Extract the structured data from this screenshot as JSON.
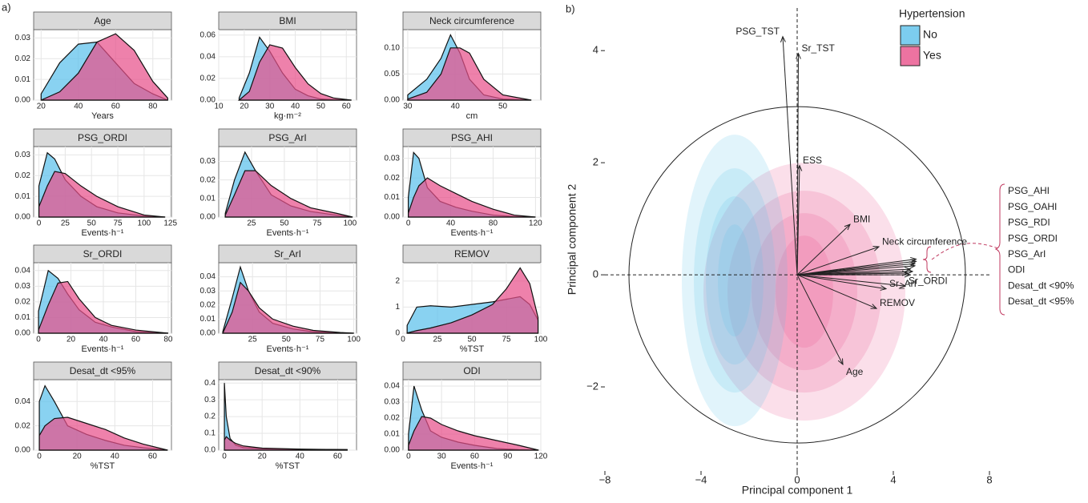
{
  "chart_data": [
    {
      "type": "density",
      "panel_label": "a)",
      "title": "Age",
      "xlabel": "Years",
      "xlim": [
        16,
        90
      ],
      "xticks": [
        20,
        40,
        60,
        80
      ],
      "ylim": [
        0,
        0.034
      ],
      "yticks": [
        {
          "value": 0,
          "label": "0.00"
        },
        0.01,
        0.02,
        0.03
      ],
      "x": [
        20,
        30,
        40,
        50,
        60,
        70,
        80,
        88
      ],
      "series": [
        {
          "color": "#5bc0eb",
          "values": [
            0.003,
            0.018,
            0.027,
            0.028,
            0.018,
            0.008,
            0.003,
            0
          ]
        },
        {
          "color": "#e8508a",
          "values": [
            0,
            0.004,
            0.013,
            0.028,
            0.032,
            0.024,
            0.009,
            0.001
          ]
        }
      ]
    },
    {
      "type": "density",
      "title": "BMI",
      "xlabel": "kg·m⁻²",
      "xlim": [
        10,
        64
      ],
      "xticks": [
        10,
        20,
        30,
        40,
        50,
        60
      ],
      "ylim": [
        0,
        0.065
      ],
      "yticks": [
        {
          "value": 0,
          "label": "0.00"
        },
        0.02,
        0.04,
        0.06
      ],
      "x": [
        18,
        22,
        26,
        30,
        35,
        40,
        45,
        50,
        55,
        62
      ],
      "series": [
        {
          "color": "#5bc0eb",
          "values": [
            0.002,
            0.025,
            0.058,
            0.045,
            0.025,
            0.01,
            0.004,
            0.001,
            0.0005,
            0
          ]
        },
        {
          "color": "#e8508a",
          "values": [
            0,
            0.008,
            0.035,
            0.051,
            0.048,
            0.03,
            0.015,
            0.006,
            0.002,
            0
          ]
        }
      ]
    },
    {
      "type": "density",
      "title": "Neck circumference",
      "xlabel": "cm",
      "xlim": [
        29,
        58
      ],
      "xticks": [
        30,
        40,
        50
      ],
      "ylim": [
        0,
        0.135
      ],
      "yticks": [
        {
          "value": 0,
          "label": "0.00"
        },
        0.05,
        {
          "value": 0.1,
          "label": "0.10"
        }
      ],
      "x": [
        30,
        34,
        37,
        39,
        41,
        43,
        46,
        50,
        56
      ],
      "series": [
        {
          "color": "#5bc0eb",
          "values": [
            0.01,
            0.04,
            0.08,
            0.125,
            0.09,
            0.04,
            0.01,
            0.002,
            0
          ]
        },
        {
          "color": "#e8508a",
          "values": [
            0.002,
            0.015,
            0.05,
            0.1,
            0.1,
            0.09,
            0.04,
            0.01,
            0
          ]
        }
      ]
    },
    {
      "type": "density",
      "title": "PSG_ORDI",
      "xlabel": "Events·h⁻¹",
      "xlim": [
        -5,
        126
      ],
      "xticks": [
        0,
        25,
        50,
        75,
        100,
        125
      ],
      "ylim": [
        0,
        0.034
      ],
      "yticks": [
        {
          "value": 0,
          "label": "0.00"
        },
        0.01,
        0.02,
        0.03
      ],
      "x": [
        0,
        8,
        15,
        25,
        40,
        55,
        75,
        100,
        120
      ],
      "series": [
        {
          "color": "#5bc0eb",
          "values": [
            0.015,
            0.031,
            0.028,
            0.018,
            0.01,
            0.005,
            0.002,
            0.0005,
            0
          ]
        },
        {
          "color": "#e8508a",
          "values": [
            0.005,
            0.015,
            0.022,
            0.021,
            0.015,
            0.01,
            0.005,
            0.001,
            0
          ]
        }
      ]
    },
    {
      "type": "density",
      "title": "PSG_ArI",
      "xlabel": "Events·h⁻¹",
      "xlim": [
        0,
        105
      ],
      "xticks": [
        25,
        50,
        75,
        100
      ],
      "ylim": [
        0,
        0.038
      ],
      "yticks": [
        {
          "value": 0,
          "label": "0.00"
        },
        0.01,
        0.02,
        0.03
      ],
      "x": [
        5,
        12,
        20,
        28,
        40,
        55,
        70,
        90,
        102
      ],
      "series": [
        {
          "color": "#5bc0eb",
          "values": [
            0.002,
            0.02,
            0.035,
            0.025,
            0.012,
            0.006,
            0.003,
            0.001,
            0
          ]
        },
        {
          "color": "#e8508a",
          "values": [
            0.001,
            0.012,
            0.025,
            0.025,
            0.017,
            0.01,
            0.005,
            0.002,
            0
          ]
        }
      ]
    },
    {
      "type": "density",
      "title": "PSG_AHI",
      "xlabel": "Events·h⁻¹",
      "xlim": [
        -5,
        125
      ],
      "xticks": [
        0,
        40,
        80,
        120
      ],
      "ylim": [
        0,
        0.036
      ],
      "yticks": [
        {
          "value": 0,
          "label": "0.00"
        },
        0.01,
        0.02,
        0.03
      ],
      "x": [
        0,
        5,
        10,
        18,
        30,
        45,
        60,
        80,
        100,
        120
      ],
      "series": [
        {
          "color": "#5bc0eb",
          "values": [
            0.01,
            0.033,
            0.03,
            0.015,
            0.008,
            0.005,
            0.003,
            0.001,
            0.0003,
            0
          ]
        },
        {
          "color": "#e8508a",
          "values": [
            0.002,
            0.01,
            0.016,
            0.02,
            0.016,
            0.012,
            0.008,
            0.004,
            0.001,
            0
          ]
        }
      ]
    },
    {
      "type": "density",
      "title": "Sr_ORDI",
      "xlabel": "Events·h⁻¹",
      "xlim": [
        -3,
        82
      ],
      "xticks": [
        0,
        20,
        40,
        60,
        80
      ],
      "ylim": [
        0,
        0.045
      ],
      "yticks": [
        {
          "value": 0,
          "label": "0.00"
        },
        0.01,
        0.02,
        0.03,
        0.04
      ],
      "x": [
        0,
        6,
        12,
        18,
        25,
        35,
        45,
        60,
        80
      ],
      "series": [
        {
          "color": "#5bc0eb",
          "values": [
            0.014,
            0.04,
            0.035,
            0.025,
            0.015,
            0.007,
            0.004,
            0.001,
            0
          ]
        },
        {
          "color": "#e8508a",
          "values": [
            0.002,
            0.018,
            0.032,
            0.033,
            0.022,
            0.01,
            0.005,
            0.002,
            0
          ]
        }
      ]
    },
    {
      "type": "density",
      "title": "Sr_ArI",
      "xlabel": "Events·h⁻¹",
      "xlim": [
        0,
        102
      ],
      "xticks": [
        25,
        50,
        75,
        100
      ],
      "ylim": [
        0,
        0.05
      ],
      "yticks": [
        {
          "value": 0,
          "label": "0.00"
        },
        0.01,
        0.02,
        0.03,
        0.04
      ],
      "x": [
        3,
        10,
        16,
        22,
        30,
        40,
        55,
        70,
        90,
        100
      ],
      "series": [
        {
          "color": "#5bc0eb",
          "values": [
            0.001,
            0.025,
            0.047,
            0.03,
            0.015,
            0.007,
            0.003,
            0.001,
            0.0002,
            0
          ]
        },
        {
          "color": "#e8508a",
          "values": [
            0,
            0.015,
            0.036,
            0.03,
            0.018,
            0.01,
            0.005,
            0.002,
            0.0005,
            0
          ]
        }
      ]
    },
    {
      "type": "density",
      "title": "REMOV",
      "xlabel": "%TST",
      "xlim": [
        0,
        100
      ],
      "xticks": [
        0,
        25,
        50,
        75,
        100
      ],
      "ylim": [
        0,
        2.7
      ],
      "yticks": [
        0,
        1,
        2
      ],
      "x": [
        3,
        10,
        20,
        35,
        50,
        65,
        75,
        85,
        92,
        98
      ],
      "series": [
        {
          "color": "#5bc0eb",
          "values": [
            0.3,
            1,
            1.05,
            1,
            1.1,
            1.2,
            1.3,
            1.4,
            1.1,
            0.5
          ]
        },
        {
          "color": "#e8508a",
          "values": [
            0.01,
            0.1,
            0.2,
            0.4,
            0.7,
            1.1,
            1.7,
            2.5,
            1.9,
            0.6
          ]
        }
      ]
    },
    {
      "type": "density",
      "title": "Desat_dt <95%",
      "xlabel": "%TST",
      "xlim": [
        -3,
        70
      ],
      "xticks": [
        0,
        20,
        40,
        60
      ],
      "ylim": [
        0,
        0.058
      ],
      "yticks": [
        {
          "value": 0,
          "label": "0.00"
        },
        0.02,
        0.04
      ],
      "x": [
        0,
        3,
        8,
        15,
        25,
        35,
        45,
        55,
        68
      ],
      "series": [
        {
          "color": "#5bc0eb",
          "values": [
            0.04,
            0.053,
            0.04,
            0.02,
            0.013,
            0.008,
            0.004,
            0.002,
            0
          ]
        },
        {
          "color": "#e8508a",
          "values": [
            0.012,
            0.02,
            0.026,
            0.027,
            0.022,
            0.017,
            0.01,
            0.005,
            0
          ]
        }
      ]
    },
    {
      "type": "density",
      "title": "Desat_dt <90%",
      "xlabel": "%TST",
      "xlim": [
        -3,
        70
      ],
      "xticks": [
        0,
        20,
        40,
        60
      ],
      "ylim": [
        0,
        0.42
      ],
      "yticks": [
        {
          "value": 0,
          "label": "0.0"
        },
        0.1,
        0.2,
        0.3,
        0.4
      ],
      "x": [
        0,
        1,
        3,
        6,
        10,
        20,
        40,
        65
      ],
      "series": [
        {
          "color": "#5bc0eb",
          "values": [
            0.4,
            0.2,
            0.07,
            0.03,
            0.015,
            0.008,
            0.005,
            0.003
          ]
        },
        {
          "color": "#e8508a",
          "values": [
            0.06,
            0.08,
            0.06,
            0.04,
            0.025,
            0.012,
            0.006,
            0.003
          ]
        }
      ]
    },
    {
      "type": "density",
      "title": "ODI",
      "xlabel": "Events·h⁻¹",
      "xlim": [
        -5,
        120
      ],
      "xticks": [
        0,
        30,
        60,
        90,
        120
      ],
      "ylim": [
        0,
        0.044
      ],
      "yticks": [
        {
          "value": 0,
          "label": "0.00"
        },
        0.01,
        0.02,
        0.03,
        0.04
      ],
      "x": [
        0,
        5,
        12,
        20,
        30,
        45,
        60,
        80,
        100,
        118
      ],
      "series": [
        {
          "color": "#5bc0eb",
          "values": [
            0.01,
            0.04,
            0.025,
            0.012,
            0.008,
            0.005,
            0.003,
            0.001,
            0.0003,
            0
          ]
        },
        {
          "color": "#e8508a",
          "values": [
            0.003,
            0.012,
            0.021,
            0.02,
            0.016,
            0.012,
            0.009,
            0.006,
            0.003,
            0
          ]
        }
      ]
    },
    {
      "type": "biplot",
      "panel_label": "b)",
      "xlabel": "Principal component 1",
      "ylabel": "Principal component 2",
      "xlim": [
        -8,
        8
      ],
      "ylim": [
        -3.5,
        4.76
      ],
      "xticks": [
        {
          "value": -8,
          "label": "−8"
        },
        {
          "value": -4,
          "label": "−4"
        },
        0,
        4,
        8
      ],
      "yticks": [
        {
          "value": -2,
          "label": "−2"
        },
        0,
        2,
        4
      ],
      "legend": {
        "title": "Hypertension",
        "entries": [
          {
            "name": "No",
            "color": "#5bc0eb"
          },
          {
            "name": "Yes",
            "color": "#e8508a"
          }
        ]
      },
      "arrows": [
        {
          "label": "PSG_TST",
          "x": -0.6,
          "y": 4.25
        },
        {
          "label": "Sr_TST",
          "x": 0.05,
          "y": 3.95
        },
        {
          "label": "ESS",
          "x": 0.1,
          "y": 1.95
        },
        {
          "label": "BMI",
          "x": 2.2,
          "y": 0.9
        },
        {
          "label": "Neck circumference",
          "x": 3.4,
          "y": 0.5
        },
        {
          "label": "Sr_ORDI",
          "x": 4.5,
          "y": -0.2
        },
        {
          "label": "Sr_ArI",
          "x": 3.7,
          "y": -0.25
        },
        {
          "label": "REMOV",
          "x": 3.3,
          "y": -0.6
        },
        {
          "label": "Age",
          "x": 1.9,
          "y": -1.6
        }
      ],
      "bracketed_arrows": [
        {
          "label": "PSG_AHI",
          "x": 4.95,
          "y": 0.28
        },
        {
          "label": "PSG_OAHI",
          "x": 4.95,
          "y": 0.24
        },
        {
          "label": "PSG_RDI",
          "x": 4.9,
          "y": 0.2
        },
        {
          "label": "PSG_ORDI",
          "x": 4.9,
          "y": 0.16
        },
        {
          "label": "PSG_ArI",
          "x": 4.7,
          "y": 0.1
        },
        {
          "label": "ODI",
          "x": 4.8,
          "y": 0.06
        },
        {
          "label": "Desat_dt <90%",
          "x": 4.6,
          "y": 0.03
        },
        {
          "label": "Desat_dt <95%",
          "x": 4.7,
          "y": 0
        }
      ]
    }
  ]
}
